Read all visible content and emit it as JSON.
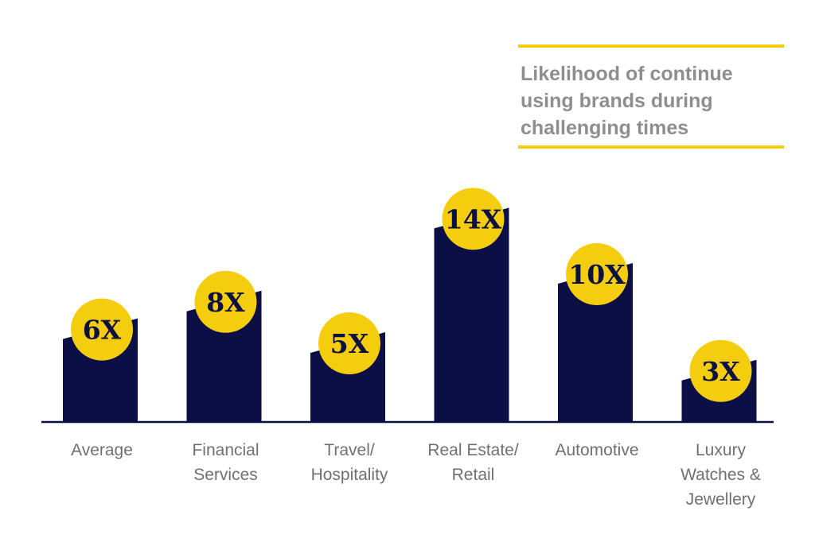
{
  "colors": {
    "bar": "#0b0f45",
    "bubble": "#f5cd0f",
    "accent_rule": "#f5cd0f",
    "title": "#8e8e8e",
    "label": "#707070",
    "axis": "#0b0f45"
  },
  "chart_data": {
    "type": "bar",
    "title": "Likelihood of continue\nusing brands during\nchallenging times",
    "xlabel": "",
    "ylabel": "",
    "ylim": [
      0,
      15
    ],
    "grid": false,
    "categories": [
      "Average",
      "Financial\nServices",
      "Travel/\nHospitality",
      "Real Estate/\nRetail",
      "Automotive",
      "Luxury\nWatches &\nJewellery"
    ],
    "values": [
      6,
      8,
      5,
      14,
      10,
      3
    ],
    "value_unit_suffix": "X",
    "data_labels": [
      "6X",
      "8X",
      "5X",
      "14X",
      "10X",
      "3X"
    ]
  }
}
